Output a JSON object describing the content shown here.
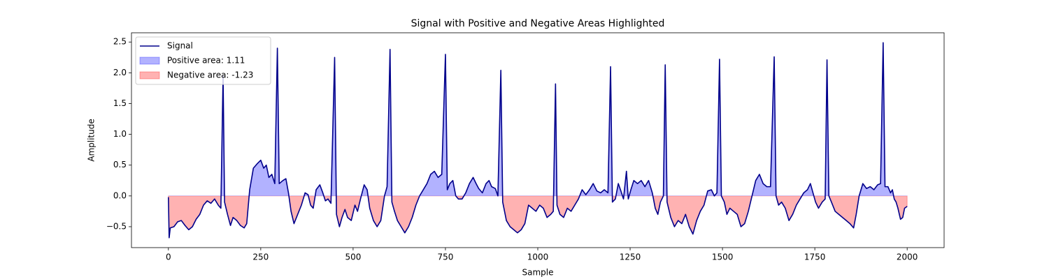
{
  "chart_data": {
    "type": "line",
    "title": "Signal with Positive and Negative Areas Highlighted",
    "x_label": "Sample",
    "y_label": "Amplitude",
    "x": [
      0,
      2,
      5,
      15,
      25,
      35,
      45,
      55,
      65,
      75,
      85,
      95,
      105,
      115,
      125,
      135,
      142,
      148,
      152,
      160,
      168,
      175,
      185,
      195,
      205,
      212,
      220,
      230,
      240,
      250,
      258,
      265,
      272,
      280,
      288,
      295,
      300,
      310,
      318,
      325,
      332,
      340,
      350,
      360,
      370,
      378,
      385,
      392,
      400,
      410,
      418,
      425,
      432,
      440,
      450,
      455,
      463,
      470,
      478,
      485,
      495,
      505,
      512,
      520,
      530,
      538,
      545,
      555,
      565,
      575,
      585,
      592,
      600,
      605,
      612,
      620,
      630,
      640,
      650,
      660,
      670,
      680,
      690,
      700,
      710,
      720,
      730,
      740,
      750,
      755,
      762,
      770,
      778,
      785,
      795,
      805,
      815,
      825,
      833,
      840,
      850,
      860,
      868,
      875,
      885,
      892,
      900,
      905,
      915,
      925,
      935,
      945,
      955,
      965,
      975,
      985,
      995,
      1005,
      1015,
      1025,
      1035,
      1042,
      1048,
      1052,
      1060,
      1070,
      1080,
      1090,
      1100,
      1110,
      1120,
      1130,
      1140,
      1150,
      1160,
      1170,
      1180,
      1190,
      1197,
      1202,
      1210,
      1218,
      1225,
      1232,
      1240,
      1245,
      1252,
      1260,
      1270,
      1280,
      1290,
      1300,
      1310,
      1318,
      1325,
      1332,
      1340,
      1345,
      1350,
      1360,
      1370,
      1380,
      1390,
      1400,
      1410,
      1420,
      1430,
      1440,
      1450,
      1460,
      1470,
      1478,
      1485,
      1492,
      1497,
      1505,
      1512,
      1520,
      1530,
      1540,
      1550,
      1560,
      1570,
      1580,
      1590,
      1600,
      1610,
      1620,
      1630,
      1640,
      1645,
      1652,
      1660,
      1670,
      1680,
      1690,
      1700,
      1710,
      1720,
      1730,
      1738,
      1745,
      1752,
      1760,
      1770,
      1778,
      1783,
      1788,
      1795,
      1805,
      1815,
      1825,
      1835,
      1845,
      1855,
      1862,
      1870,
      1880,
      1890,
      1900,
      1910,
      1920,
      1928,
      1935,
      1940,
      1948,
      1955,
      1960,
      1965,
      1970,
      1975,
      1982,
      1988,
      1993,
      2000
    ],
    "series": [
      {
        "name": "Signal",
        "color": "#00008b",
        "values": [
          -0.02,
          -0.68,
          -0.52,
          -0.5,
          -0.42,
          -0.4,
          -0.48,
          -0.55,
          -0.5,
          -0.38,
          -0.3,
          -0.15,
          -0.08,
          -0.12,
          -0.05,
          -0.15,
          -0.2,
          1.95,
          -0.1,
          -0.3,
          -0.48,
          -0.35,
          -0.4,
          -0.48,
          -0.52,
          -0.45,
          0.1,
          0.45,
          0.52,
          0.58,
          0.45,
          0.5,
          0.3,
          0.35,
          0.2,
          2.4,
          0.2,
          0.25,
          0.28,
          0.05,
          -0.25,
          -0.45,
          -0.3,
          -0.15,
          0.05,
          0.02,
          -0.15,
          -0.2,
          0.1,
          0.18,
          0.05,
          -0.08,
          -0.05,
          -0.12,
          2.25,
          -0.3,
          -0.5,
          -0.35,
          -0.22,
          -0.35,
          -0.4,
          -0.15,
          -0.25,
          -0.05,
          0.18,
          0.1,
          -0.2,
          -0.4,
          -0.5,
          -0.4,
          0.0,
          0.15,
          2.38,
          -0.1,
          -0.25,
          -0.4,
          -0.5,
          -0.6,
          -0.5,
          -0.35,
          -0.15,
          0.0,
          0.1,
          0.2,
          0.35,
          0.4,
          0.3,
          0.35,
          2.3,
          0.1,
          0.2,
          0.25,
          0.0,
          -0.05,
          -0.05,
          0.05,
          0.2,
          0.3,
          0.2,
          0.12,
          0.05,
          0.2,
          0.25,
          0.15,
          0.12,
          0.0,
          2.04,
          -0.1,
          -0.4,
          -0.5,
          -0.55,
          -0.6,
          -0.55,
          -0.45,
          -0.15,
          -0.2,
          -0.25,
          -0.15,
          -0.2,
          -0.35,
          -0.3,
          -0.25,
          1.82,
          -0.15,
          -0.3,
          -0.35,
          -0.2,
          -0.25,
          -0.15,
          -0.05,
          0.1,
          0.02,
          0.1,
          0.2,
          0.08,
          0.05,
          0.1,
          0.05,
          2.1,
          -0.1,
          -0.05,
          0.2,
          0.08,
          -0.05,
          0.4,
          -0.05,
          0.1,
          0.25,
          0.2,
          0.25,
          0.15,
          0.25,
          0.05,
          -0.2,
          -0.3,
          -0.1,
          0.0,
          2.13,
          -0.1,
          -0.35,
          -0.5,
          -0.4,
          -0.45,
          -0.3,
          -0.5,
          -0.62,
          -0.4,
          -0.25,
          -0.15,
          0.08,
          0.1,
          0.0,
          0.05,
          2.22,
          0.0,
          -0.1,
          -0.3,
          -0.2,
          -0.25,
          -0.3,
          -0.5,
          -0.45,
          -0.25,
          0.0,
          0.25,
          0.35,
          0.2,
          0.15,
          0.15,
          2.26,
          0.0,
          -0.15,
          -0.1,
          -0.2,
          -0.4,
          -0.3,
          -0.15,
          -0.05,
          0.05,
          0.1,
          0.2,
          0.05,
          -0.1,
          -0.2,
          -0.1,
          -0.05,
          2.21,
          0.0,
          -0.1,
          -0.25,
          -0.3,
          -0.35,
          -0.4,
          -0.45,
          -0.52,
          -0.3,
          0.0,
          0.2,
          0.12,
          0.15,
          0.1,
          0.18,
          0.2,
          2.49,
          0.15,
          0.15,
          0.05,
          0.1,
          -0.05,
          -0.1,
          -0.2,
          -0.38,
          -0.35,
          -0.2,
          -0.17
        ]
      }
    ],
    "fills": [
      {
        "name": "Positive area: 1.11",
        "color": "#0000ff",
        "side": "above"
      },
      {
        "name": "Negative area: -1.23",
        "color": "#ff0000",
        "side": "below"
      }
    ],
    "xlim": [
      -100,
      2100
    ],
    "ylim": [
      -0.84,
      2.65
    ],
    "xticks": [
      0,
      250,
      500,
      750,
      1000,
      1250,
      1500,
      1750,
      2000
    ],
    "yticks": [
      {
        "value": -0.5,
        "label": "−0.5"
      },
      {
        "value": 0,
        "label": "0.0"
      },
      0.5,
      {
        "value": 1,
        "label": "1.0"
      },
      1.5,
      {
        "value": 2,
        "label": "2.0"
      },
      2.5
    ],
    "grid": false,
    "legend": "upper left"
  }
}
